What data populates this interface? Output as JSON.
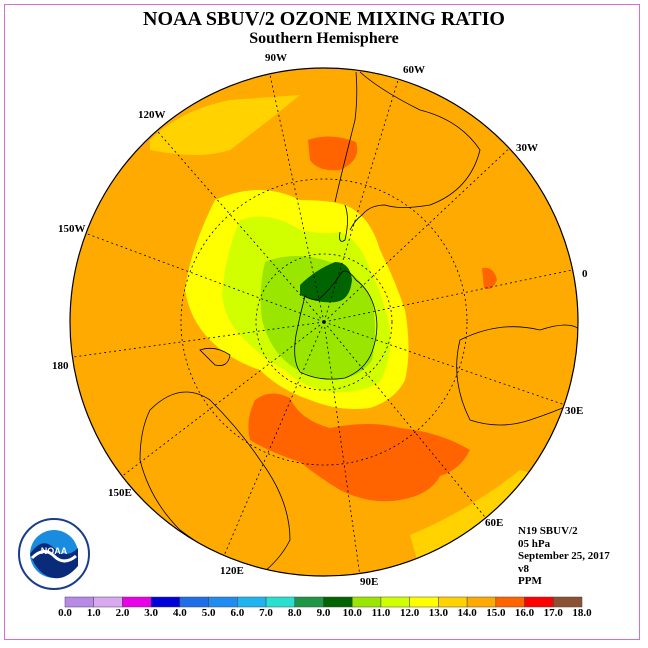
{
  "title": "NOAA SBUV/2 OZONE MIXING RATIO",
  "subtitle": "Southern Hemisphere",
  "longitude_labels": [
    {
      "id": "90w",
      "text": "90W"
    },
    {
      "id": "60w",
      "text": "60W"
    },
    {
      "id": "30w",
      "text": "30W"
    },
    {
      "id": "0",
      "text": "0"
    },
    {
      "id": "30e",
      "text": "30E"
    },
    {
      "id": "60e",
      "text": "60E"
    },
    {
      "id": "90e",
      "text": "90E"
    },
    {
      "id": "120e",
      "text": "120E"
    },
    {
      "id": "150e",
      "text": "150E"
    },
    {
      "id": "180",
      "text": "180"
    },
    {
      "id": "150w",
      "text": "150W"
    },
    {
      "id": "120w",
      "text": "120W"
    }
  ],
  "info": {
    "satellite": "N19 SBUV/2",
    "level": "05 hPa",
    "date": "September 25, 2017",
    "version": "v8",
    "units": "PPM"
  },
  "logo": {
    "text": "NOAA",
    "icon": "noaa-logo"
  },
  "legend": {
    "tick_labels": [
      "0.0",
      "1.0",
      "2.0",
      "3.0",
      "4.0",
      "5.0",
      "6.0",
      "7.0",
      "8.0",
      "9.0",
      "10.0",
      "11.0",
      "12.0",
      "13.0",
      "14.0",
      "15.0",
      "16.0",
      "17.0",
      "18.0"
    ],
    "colors": [
      "#b88ae8",
      "#d8a8f0",
      "#e800e8",
      "#0000d8",
      "#1e6ee8",
      "#1e8cf0",
      "#1eb4f0",
      "#28e0d0",
      "#1e9646",
      "#006400",
      "#9ae600",
      "#d2ff00",
      "#ffff00",
      "#ffd200",
      "#ffaa00",
      "#ff6400",
      "#ff0000",
      "#8c5032"
    ]
  }
}
